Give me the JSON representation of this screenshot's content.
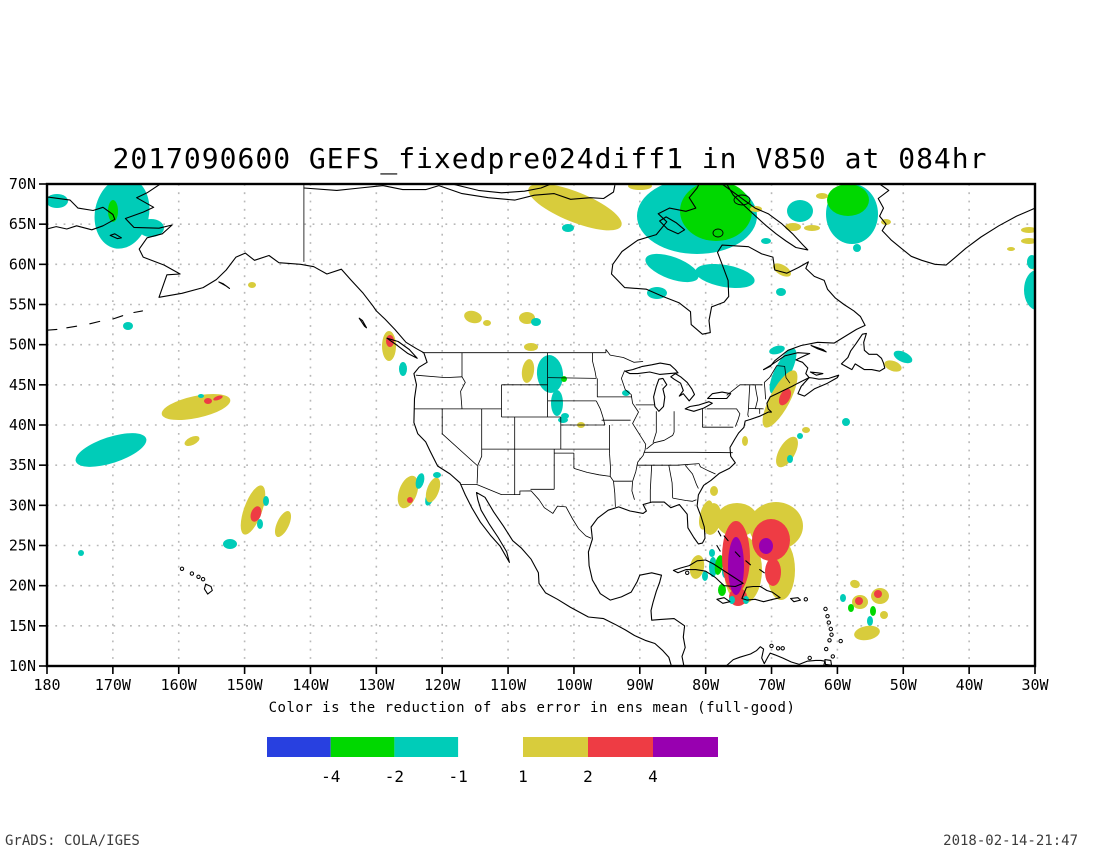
{
  "title": "2017090600 GEFS_fixedpre024diff1 in V850 at 084hr",
  "caption": "Color is the reduction of abs error in ens mean (full-good)",
  "footer": {
    "left": "GrADS: COLA/IGES",
    "right": "2018-02-14-21:47"
  },
  "colors": {
    "blue": "#2840e0",
    "green": "#00d800",
    "cyan": "#00ccb8",
    "yellow": "#d8cc3c",
    "red": "#ee3c44",
    "purple": "#9800b0",
    "grid": "#b8b8b8",
    "coast": "#000000"
  },
  "axes": {
    "lat_ticks": [
      {
        "label": "70N",
        "lat": 70
      },
      {
        "label": "65N",
        "lat": 65
      },
      {
        "label": "60N",
        "lat": 60
      },
      {
        "label": "55N",
        "lat": 55
      },
      {
        "label": "50N",
        "lat": 50
      },
      {
        "label": "45N",
        "lat": 45
      },
      {
        "label": "40N",
        "lat": 40
      },
      {
        "label": "35N",
        "lat": 35
      },
      {
        "label": "30N",
        "lat": 30
      },
      {
        "label": "25N",
        "lat": 25
      },
      {
        "label": "20N",
        "lat": 20
      },
      {
        "label": "15N",
        "lat": 15
      },
      {
        "label": "10N",
        "lat": 10
      }
    ],
    "lon_ticks": [
      {
        "label": "180",
        "lon": 180
      },
      {
        "label": "170W",
        "lon": 170
      },
      {
        "label": "160W",
        "lon": 160
      },
      {
        "label": "150W",
        "lon": 150
      },
      {
        "label": "140W",
        "lon": 140
      },
      {
        "label": "130W",
        "lon": 130
      },
      {
        "label": "120W",
        "lon": 120
      },
      {
        "label": "110W",
        "lon": 110
      },
      {
        "label": "100W",
        "lon": 100
      },
      {
        "label": "90W",
        "lon": 90
      },
      {
        "label": "80W",
        "lon": 80
      },
      {
        "label": "70W",
        "lon": 70
      },
      {
        "label": "60W",
        "lon": 60
      },
      {
        "label": "50W",
        "lon": 50
      },
      {
        "label": "40W",
        "lon": 40
      },
      {
        "label": "30W",
        "lon": 30
      }
    ]
  },
  "legend": {
    "negative_bar": {
      "segment_colors": [
        "blue",
        "green",
        "cyan"
      ],
      "boundary_labels": [
        "-4",
        "-2",
        "-1"
      ]
    },
    "positive_bar": {
      "segment_colors": [
        "yellow",
        "red",
        "purple"
      ],
      "boundary_labels": [
        "1",
        "2",
        "4"
      ]
    }
  },
  "map_regions": {
    "blob_format": [
      "color_key",
      "cx",
      "cy",
      "rx",
      "ry",
      "rotation_deg"
    ],
    "blobs": [
      [
        "c",
        122,
        213,
        27,
        36,
        12
      ],
      [
        "g",
        113,
        211,
        5,
        11,
        0
      ],
      [
        "c",
        57,
        201,
        11,
        7,
        0
      ],
      [
        "c",
        151,
        228,
        13,
        9,
        0
      ],
      [
        "c",
        128,
        326,
        5,
        4,
        0
      ],
      [
        "y",
        252,
        285,
        4,
        3,
        0
      ],
      [
        "y",
        575,
        207,
        50,
        15,
        22
      ],
      [
        "y",
        640,
        186,
        12,
        4,
        0
      ],
      [
        "c",
        568,
        228,
        6,
        4,
        0
      ],
      [
        "c",
        697,
        216,
        60,
        38,
        0
      ],
      [
        "g",
        716,
        211,
        36,
        30,
        0
      ],
      [
        "c",
        672,
        268,
        28,
        11,
        20
      ],
      [
        "c",
        725,
        276,
        30,
        11,
        10
      ],
      [
        "c",
        657,
        293,
        10,
        6,
        0
      ],
      [
        "y",
        756,
        209,
        6,
        3,
        0
      ],
      [
        "c",
        800,
        211,
        13,
        11,
        0
      ],
      [
        "y",
        812,
        228,
        8,
        3,
        0
      ],
      [
        "c",
        766,
        241,
        5,
        3,
        0
      ],
      [
        "c",
        851,
        196,
        10,
        4,
        -20
      ],
      [
        "y",
        886,
        222,
        5,
        3,
        0
      ],
      [
        "c",
        852,
        214,
        26,
        30,
        0
      ],
      [
        "g",
        848,
        200,
        21,
        16,
        0
      ],
      [
        "y",
        822,
        196,
        6,
        3,
        0
      ],
      [
        "y",
        793,
        227,
        8,
        4,
        0
      ],
      [
        "y",
        782,
        270,
        10,
        5,
        30
      ],
      [
        "c",
        781,
        292,
        5,
        4,
        0
      ],
      [
        "c",
        857,
        248,
        4,
        4,
        0
      ],
      [
        "y",
        1029,
        230,
        8,
        3,
        0
      ],
      [
        "c",
        1044,
        233,
        4,
        3,
        0
      ],
      [
        "y",
        1029,
        241,
        8,
        3,
        0
      ],
      [
        "y",
        1011,
        249,
        4,
        2,
        0
      ],
      [
        "y",
        1038,
        263,
        9,
        8,
        0
      ],
      [
        "c",
        1032,
        262,
        5,
        7,
        0
      ],
      [
        "r",
        1042,
        266,
        4,
        3,
        0
      ],
      [
        "c",
        1037,
        290,
        13,
        20,
        0
      ],
      [
        "c",
        903,
        357,
        10,
        5,
        25
      ],
      [
        "y",
        893,
        366,
        9,
        5,
        20
      ],
      [
        "c",
        846,
        422,
        4,
        4,
        0
      ],
      [
        "c",
        777,
        350,
        8,
        4,
        -15
      ],
      [
        "c",
        783,
        371,
        8,
        25,
        27
      ],
      [
        "y",
        780,
        399,
        10,
        32,
        28
      ],
      [
        "r",
        785,
        397,
        5,
        9,
        27
      ],
      [
        "y",
        787,
        452,
        8,
        17,
        30
      ],
      [
        "c",
        790,
        459,
        3,
        4,
        0
      ],
      [
        "c",
        800,
        436,
        3,
        3,
        0
      ],
      [
        "y",
        806,
        430,
        4,
        3,
        0
      ],
      [
        "y",
        745,
        441,
        3,
        5,
        0
      ],
      [
        "y",
        389,
        346,
        7,
        15,
        0
      ],
      [
        "r",
        390,
        341,
        4,
        6,
        0
      ],
      [
        "c",
        403,
        369,
        4,
        7,
        0
      ],
      [
        "y",
        473,
        317,
        9,
        6,
        15
      ],
      [
        "y",
        487,
        323,
        4,
        3,
        0
      ],
      [
        "y",
        527,
        318,
        8,
        6,
        0
      ],
      [
        "c",
        536,
        322,
        5,
        4,
        0
      ],
      [
        "y",
        531,
        347,
        7,
        4,
        0
      ],
      [
        "y",
        528,
        371,
        6,
        12,
        8
      ],
      [
        "c",
        550,
        374,
        13,
        19,
        -5
      ],
      [
        "c",
        557,
        403,
        6,
        13,
        0
      ],
      [
        "c",
        563,
        420,
        5,
        3,
        0
      ],
      [
        "g",
        564,
        379,
        3,
        3,
        0
      ],
      [
        "c",
        626,
        393,
        4,
        3,
        0
      ],
      [
        "y",
        581,
        425,
        4,
        3,
        0
      ],
      [
        "c",
        565,
        416,
        4,
        3,
        0
      ],
      [
        "y",
        408,
        492,
        9,
        17,
        20
      ],
      [
        "c",
        420,
        481,
        4,
        8,
        15
      ],
      [
        "c",
        430,
        497,
        4,
        9,
        20
      ],
      [
        "y",
        433,
        490,
        6,
        13,
        20
      ],
      [
        "r",
        410,
        500,
        3,
        3,
        0
      ],
      [
        "c",
        437,
        475,
        4,
        3,
        0
      ],
      [
        "y",
        196,
        407,
        35,
        11,
        -12
      ],
      [
        "c",
        201,
        396,
        3,
        2,
        0
      ],
      [
        "r",
        208,
        401,
        4,
        3,
        0
      ],
      [
        "r",
        218,
        398,
        5,
        2,
        -20
      ],
      [
        "c",
        111,
        450,
        37,
        13,
        -18
      ],
      [
        "y",
        192,
        441,
        8,
        4,
        -25
      ],
      [
        "y",
        253,
        510,
        9,
        26,
        20
      ],
      [
        "r",
        256,
        514,
        5,
        8,
        20
      ],
      [
        "c",
        266,
        501,
        3,
        5,
        0
      ],
      [
        "c",
        260,
        524,
        3,
        5,
        0
      ],
      [
        "y",
        283,
        524,
        6,
        14,
        25
      ],
      [
        "c",
        230,
        544,
        7,
        5,
        0
      ],
      [
        "c",
        81,
        553,
        3,
        3,
        0
      ],
      [
        "y",
        712,
        519,
        9,
        16,
        10
      ],
      [
        "y",
        737,
        520,
        21,
        17,
        0
      ],
      [
        "y",
        776,
        526,
        27,
        24,
        0
      ],
      [
        "y",
        743,
        570,
        19,
        34,
        0
      ],
      [
        "y",
        781,
        570,
        14,
        30,
        0
      ],
      [
        "y",
        706,
        515,
        6,
        15,
        15
      ],
      [
        "y",
        714,
        491,
        4,
        5,
        0
      ],
      [
        "y",
        697,
        567,
        7,
        12,
        10
      ],
      [
        "c",
        705,
        576,
        3,
        5,
        0
      ],
      [
        "c",
        713,
        567,
        4,
        10,
        0
      ],
      [
        "g",
        719,
        565,
        4,
        10,
        10
      ],
      [
        "g",
        722,
        590,
        4,
        6,
        0
      ],
      [
        "c",
        725,
        572,
        3,
        6,
        0
      ],
      [
        "r",
        736,
        557,
        14,
        36,
        0
      ],
      [
        "r",
        738,
        597,
        9,
        9,
        0
      ],
      [
        "r",
        771,
        540,
        19,
        21,
        0
      ],
      [
        "r",
        773,
        572,
        8,
        14,
        0
      ],
      [
        "p",
        736,
        566,
        8,
        29,
        0
      ],
      [
        "p",
        766,
        546,
        7,
        8,
        0
      ],
      [
        "c",
        732,
        600,
        3,
        4,
        0
      ],
      [
        "c",
        746,
        600,
        3,
        4,
        0
      ],
      [
        "c",
        712,
        553,
        3,
        4,
        0
      ],
      [
        "y",
        855,
        584,
        5,
        4,
        20
      ],
      [
        "y",
        880,
        596,
        9,
        8,
        0
      ],
      [
        "r",
        878,
        594,
        4,
        4,
        0
      ],
      [
        "y",
        860,
        602,
        8,
        7,
        0
      ],
      [
        "r",
        859,
        601,
        4,
        4,
        0
      ],
      [
        "c",
        843,
        598,
        3,
        4,
        0
      ],
      [
        "g",
        851,
        608,
        3,
        4,
        0
      ],
      [
        "g",
        873,
        611,
        3,
        5,
        0
      ],
      [
        "c",
        870,
        621,
        3,
        5,
        0
      ],
      [
        "y",
        884,
        615,
        4,
        4,
        0
      ],
      [
        "y",
        867,
        633,
        13,
        7,
        -10
      ]
    ]
  }
}
